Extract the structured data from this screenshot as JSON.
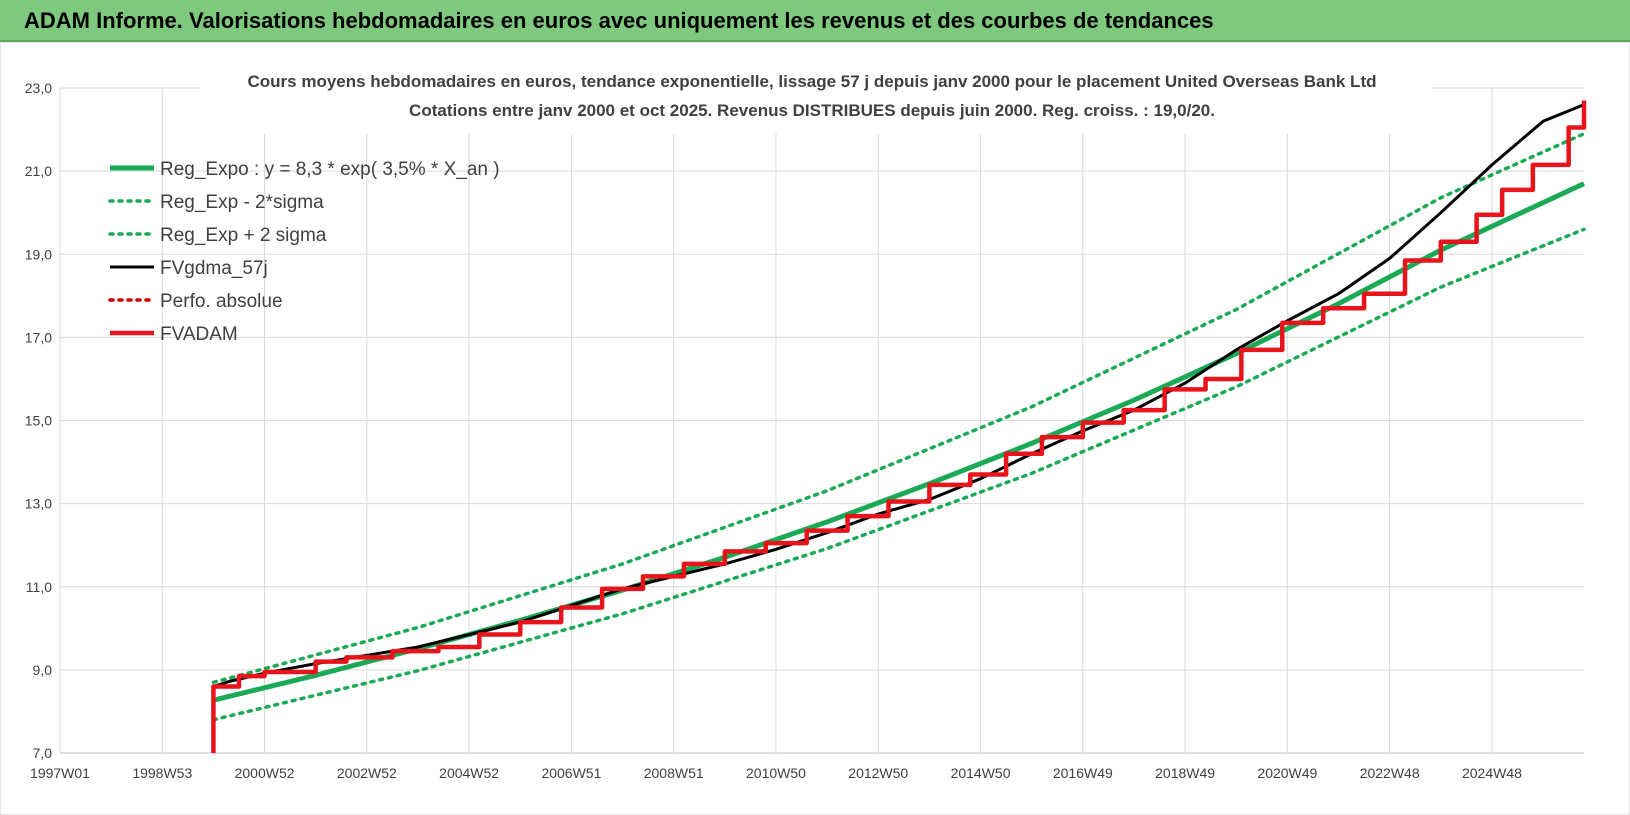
{
  "banner": {
    "title": "ADAM Informe. Valorisations hebdomadaires en euros avec uniquement les revenus et des courbes de tendances"
  },
  "colors": {
    "banner_bg": "#7fc97f",
    "trend": "#1aaa55",
    "fvgdma": "#000000",
    "fvadam": "#e8141b",
    "perfo": "#cc0000",
    "grid": "#d9d9d9",
    "text": "#404040"
  },
  "chart_data": {
    "type": "line",
    "title": "Cours moyens hebdomadaires en euros, tendance exponentielle, lissage 57 j depuis janv 2000 pour le placement United Overseas Bank Ltd",
    "subtitle": "Cotations entre janv 2000 et oct 2025. Revenus DISTRIBUES depuis juin 2000. Reg. croiss. : 19,0/20.",
    "xlabel": "",
    "ylabel": "",
    "ylim": [
      7.0,
      23.0
    ],
    "xlim": [
      1997.0,
      2026.8
    ],
    "y_ticks": [
      "7,0",
      "9,0",
      "11,0",
      "13,0",
      "15,0",
      "17,0",
      "19,0",
      "21,0",
      "23,0"
    ],
    "x_ticks": [
      {
        "x": 1997.0,
        "label": "1997W01"
      },
      {
        "x": 1999.0,
        "label": "1998W53"
      },
      {
        "x": 2001.0,
        "label": "2000W52"
      },
      {
        "x": 2003.0,
        "label": "2002W52"
      },
      {
        "x": 2005.0,
        "label": "2004W52"
      },
      {
        "x": 2007.0,
        "label": "2006W51"
      },
      {
        "x": 2009.0,
        "label": "2008W51"
      },
      {
        "x": 2011.0,
        "label": "2010W50"
      },
      {
        "x": 2013.0,
        "label": "2012W50"
      },
      {
        "x": 2015.0,
        "label": "2014W50"
      },
      {
        "x": 2017.0,
        "label": "2016W49"
      },
      {
        "x": 2019.0,
        "label": "2018W49"
      },
      {
        "x": 2021.0,
        "label": "2020W49"
      },
      {
        "x": 2023.0,
        "label": "2022W48"
      },
      {
        "x": 2025.0,
        "label": "2024W48"
      }
    ],
    "legend_position": "top-left",
    "grid": true,
    "series": [
      {
        "name": "Reg_Expo : y = 8,3 * exp( 3,5% *  X_an )",
        "style": "solid-thick",
        "color": "#1aaa55",
        "x": [
          2000.0,
          2002.0,
          2004.0,
          2006.0,
          2008.0,
          2010.0,
          2012.0,
          2014.0,
          2016.0,
          2018.0,
          2020.0,
          2022.0,
          2024.0,
          2026.8
        ],
        "y": [
          8.27,
          8.87,
          9.51,
          10.19,
          10.92,
          11.71,
          12.56,
          13.48,
          14.45,
          15.49,
          16.61,
          17.81,
          19.1,
          20.7
        ]
      },
      {
        "name": "Reg_Exp - 2*sigma",
        "style": "dotted",
        "color": "#1aaa55",
        "x": [
          2000.0,
          2004.0,
          2008.0,
          2012.0,
          2016.0,
          2020.0,
          2024.0,
          2026.8
        ],
        "y": [
          7.8,
          8.98,
          10.35,
          11.92,
          13.73,
          15.81,
          18.21,
          19.6
        ]
      },
      {
        "name": "Reg_Exp + 2 sigma",
        "style": "dotted",
        "color": "#1aaa55",
        "x": [
          2000.0,
          2004.0,
          2008.0,
          2012.0,
          2016.0,
          2020.0,
          2024.0,
          2026.8
        ],
        "y": [
          8.7,
          10.02,
          11.55,
          13.31,
          15.33,
          17.67,
          20.36,
          21.9
        ]
      },
      {
        "name": "FVgdma_57j",
        "style": "solid",
        "color": "#000000",
        "x": [
          2000.0,
          2000.3,
          2001.0,
          2002.0,
          2003.0,
          2004.0,
          2005.0,
          2006.0,
          2007.0,
          2008.0,
          2009.0,
          2010.0,
          2011.0,
          2012.0,
          2013.0,
          2014.0,
          2015.0,
          2016.0,
          2017.0,
          2018.0,
          2019.0,
          2020.0,
          2021.0,
          2022.0,
          2023.0,
          2024.0,
          2025.0,
          2026.0,
          2026.8
        ],
        "y": [
          8.6,
          8.72,
          8.92,
          9.15,
          9.35,
          9.55,
          9.85,
          10.15,
          10.55,
          10.95,
          11.25,
          11.55,
          11.9,
          12.3,
          12.75,
          13.1,
          13.6,
          14.2,
          14.75,
          15.25,
          15.9,
          16.7,
          17.4,
          18.05,
          18.9,
          20.0,
          21.15,
          22.2,
          22.6
        ]
      },
      {
        "name": "Perfo. absolue",
        "style": "dotted",
        "color": "#cc0000",
        "x": [],
        "y": []
      },
      {
        "name": "FVADAM",
        "style": "step-thick",
        "color": "#e8141b",
        "x": [
          2000.0,
          2000.0,
          2000.5,
          2001.0,
          2002.0,
          2002.6,
          2003.5,
          2004.4,
          2005.2,
          2006.0,
          2006.8,
          2007.6,
          2008.4,
          2009.2,
          2010.0,
          2010.8,
          2011.6,
          2012.4,
          2013.2,
          2014.0,
          2014.8,
          2015.5,
          2016.2,
          2017.0,
          2017.8,
          2018.6,
          2019.4,
          2020.1,
          2020.9,
          2021.7,
          2022.5,
          2023.3,
          2024.0,
          2024.7,
          2025.2,
          2025.8,
          2026.5,
          2026.8
        ],
        "y": [
          7.0,
          8.6,
          8.85,
          8.95,
          9.2,
          9.3,
          9.45,
          9.55,
          9.85,
          10.15,
          10.5,
          10.95,
          11.25,
          11.55,
          11.85,
          12.05,
          12.35,
          12.7,
          13.05,
          13.45,
          13.7,
          14.2,
          14.6,
          14.95,
          15.25,
          15.75,
          16.0,
          16.7,
          17.35,
          17.7,
          18.05,
          18.85,
          19.3,
          19.95,
          20.55,
          21.15,
          22.05,
          22.7
        ]
      }
    ]
  }
}
